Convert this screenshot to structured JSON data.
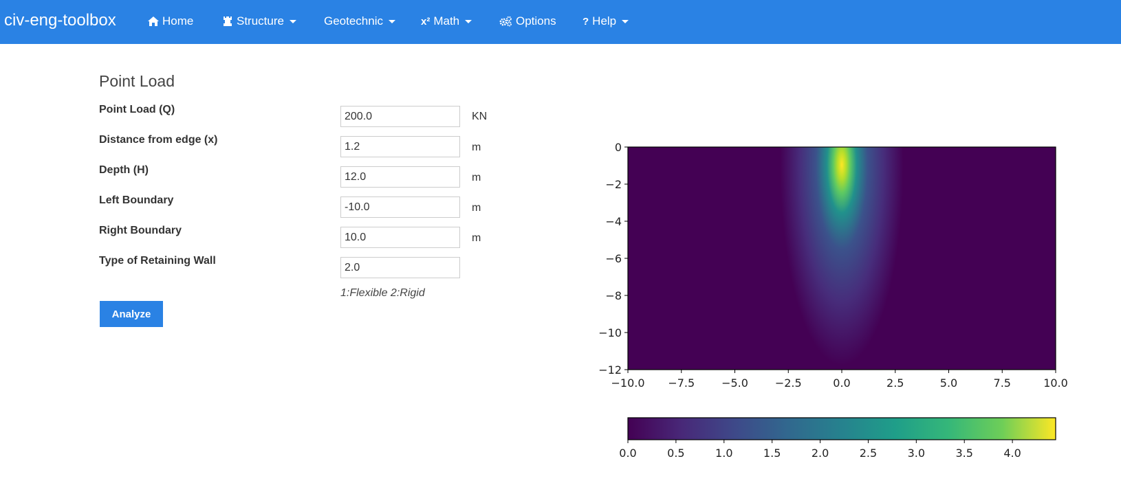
{
  "nav": {
    "brand": "civ-eng-toolbox",
    "items": [
      {
        "label": "Home",
        "icon": "home-icon",
        "dropdown": false
      },
      {
        "label": "Structure",
        "icon": "tower-icon",
        "dropdown": true
      },
      {
        "label": "Geotechnic",
        "icon": "",
        "dropdown": true
      },
      {
        "label": "Math",
        "icon": "x2-icon",
        "icon_text": "x²",
        "dropdown": true
      },
      {
        "label": "Options",
        "icon": "cogs-icon",
        "dropdown": false
      },
      {
        "label": "Help",
        "icon": "question-icon",
        "icon_text": "?",
        "dropdown": true
      }
    ],
    "color": "#2a82e4"
  },
  "form": {
    "title": "Point Load",
    "rows": [
      {
        "label": "Point Load (Q)",
        "value": "200.0",
        "unit": "KN"
      },
      {
        "label": "Distance from edge (x)",
        "value": "1.2",
        "unit": "m"
      },
      {
        "label": "Depth (H)",
        "value": "12.0",
        "unit": "m"
      },
      {
        "label": "Left Boundary",
        "value": "-10.0",
        "unit": "m"
      },
      {
        "label": "Right Boundary",
        "value": "10.0",
        "unit": "m"
      },
      {
        "label": "Type of Retaining Wall",
        "value": "2.0",
        "unit": ""
      }
    ],
    "hint": "1:Flexible 2:Rigid",
    "analyze_label": "Analyze",
    "button_color": "#2a82e4"
  },
  "chart_data": {
    "type": "heatmap",
    "xlim": [
      -10.0,
      10.0
    ],
    "ylim": [
      -12,
      0
    ],
    "xticks": [
      "−10.0",
      "−7.5",
      "−5.0",
      "−2.5",
      "0.0",
      "2.5",
      "5.0",
      "7.5",
      "10.0"
    ],
    "xtick_values": [
      -10,
      -7.5,
      -5,
      -2.5,
      0,
      2.5,
      5,
      7.5,
      10
    ],
    "yticks": [
      "0",
      "−2",
      "−4",
      "−6",
      "−8",
      "−10",
      "−12"
    ],
    "ytick_values": [
      0,
      -2,
      -4,
      -6,
      -8,
      -10,
      -12
    ],
    "colormap": "viridis",
    "colorbar": {
      "range": [
        0.0,
        4.45
      ],
      "ticks": [
        "0.0",
        "0.5",
        "1.0",
        "1.5",
        "2.0",
        "2.5",
        "3.0",
        "3.5",
        "4.0"
      ],
      "tick_values": [
        0,
        0.5,
        1,
        1.5,
        2,
        2.5,
        3,
        3.5,
        4
      ],
      "orientation": "horizontal"
    },
    "peak": {
      "x": 0.0,
      "y": -1.0,
      "value": 4.45
    },
    "grid": false
  }
}
